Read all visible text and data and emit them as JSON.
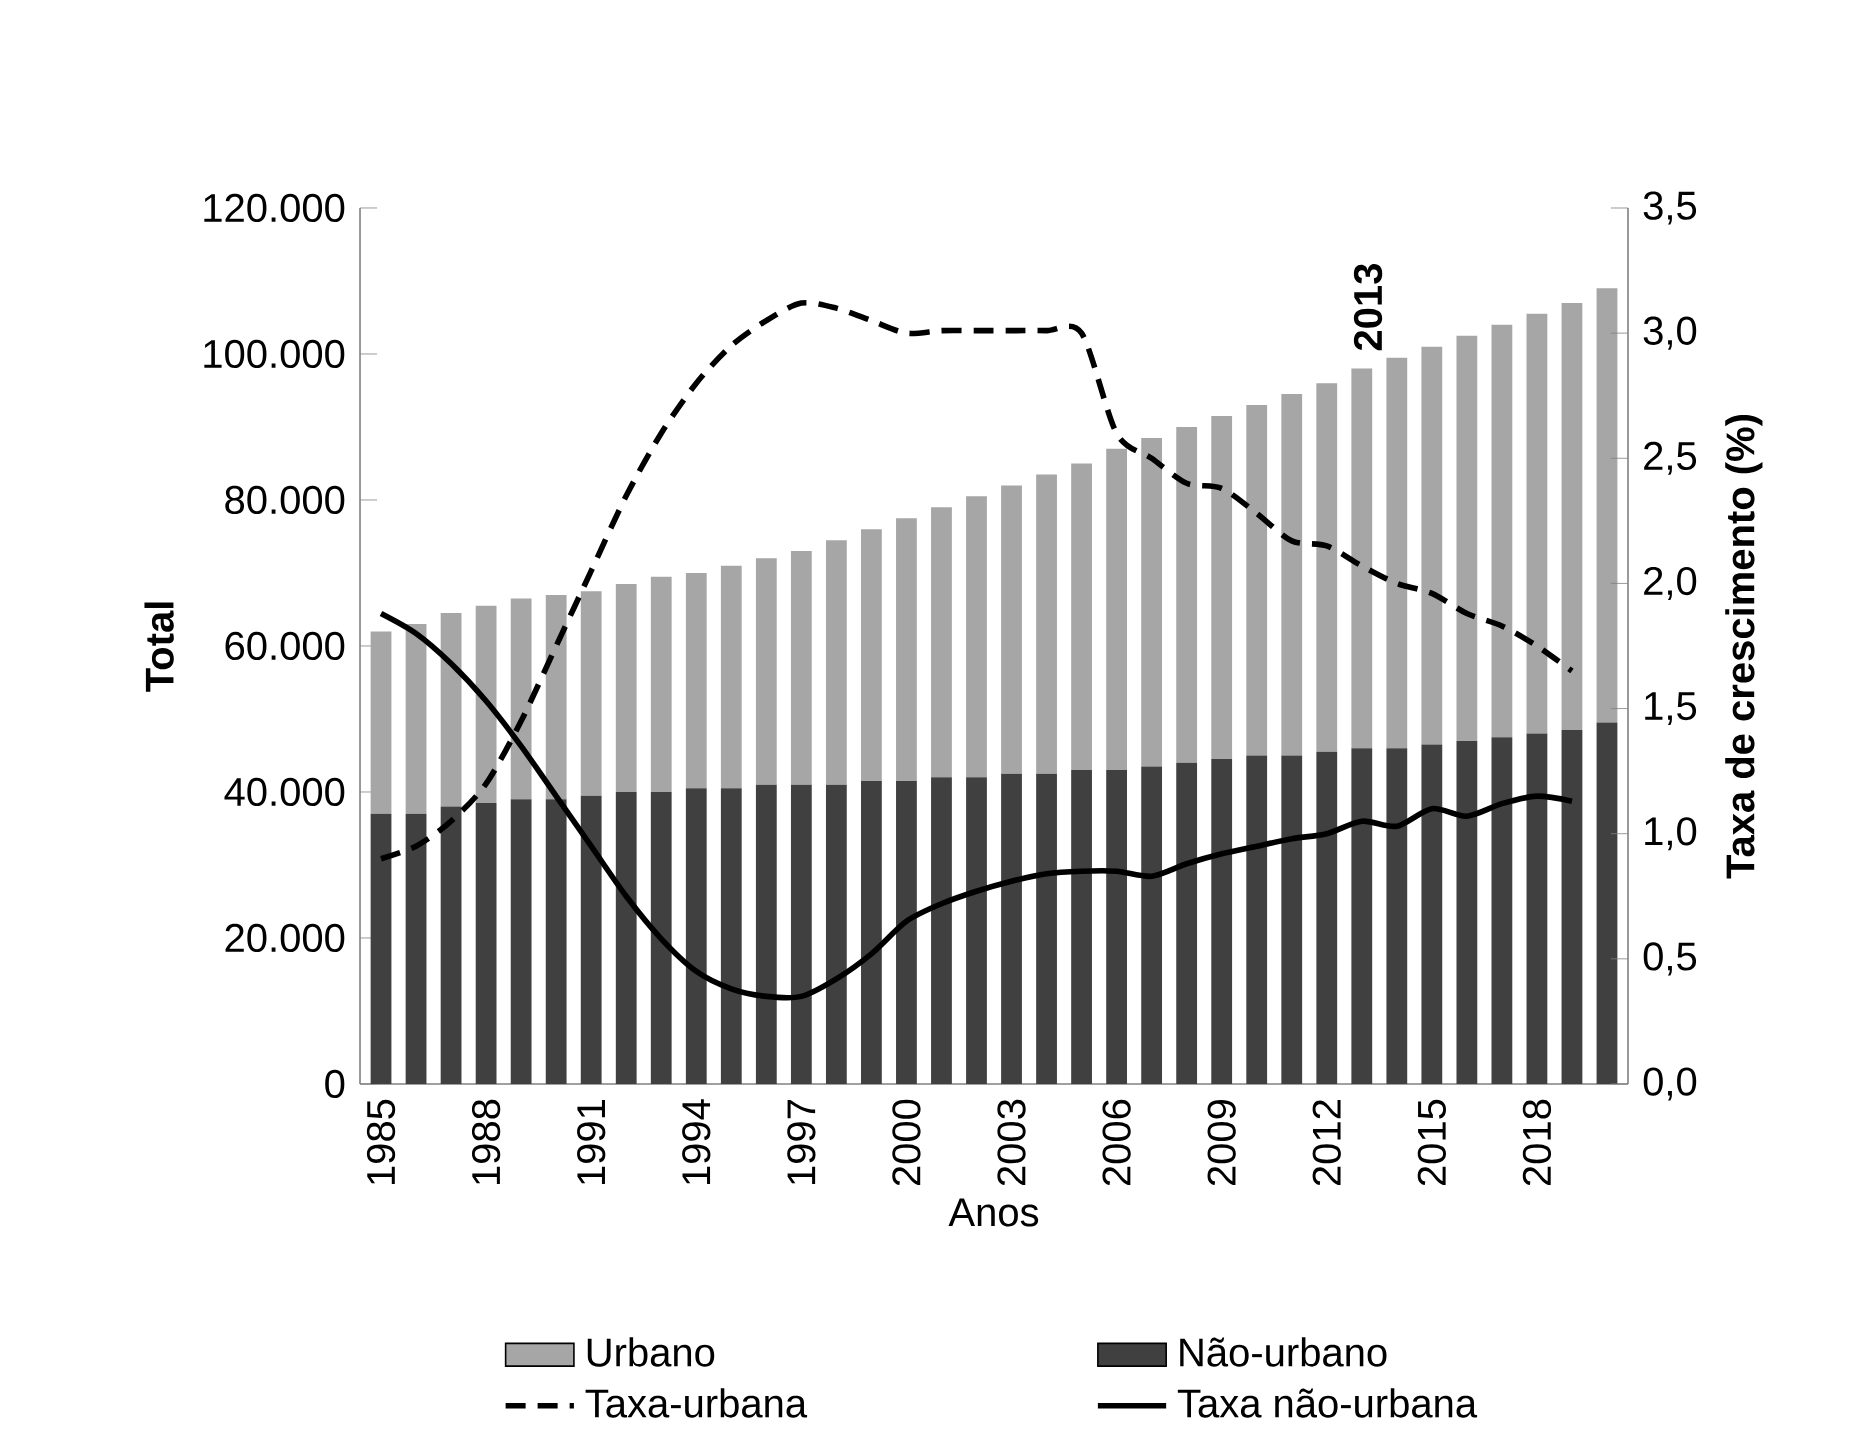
{
  "chart_data": {
    "type": "bar",
    "stacked": true,
    "xlabel": "Anos",
    "ylabel": "Total",
    "y2label": "Taxa de crescimento (%)",
    "categories": [
      "1985",
      null,
      null,
      "1988",
      null,
      null,
      "1991",
      null,
      null,
      "1994",
      null,
      null,
      "1997",
      null,
      null,
      "2000",
      null,
      null,
      "2003",
      null,
      null,
      "2006",
      null,
      null,
      "2009",
      null,
      null,
      "2012",
      null,
      null,
      "2015",
      null,
      null,
      "2018",
      null,
      null
    ],
    "series": [
      {
        "name": "Não-urbano",
        "color": "#404040",
        "values": [
          37000,
          37000,
          38000,
          38500,
          39000,
          39000,
          39500,
          40000,
          40000,
          40500,
          40500,
          41000,
          41000,
          41000,
          41500,
          41500,
          42000,
          42000,
          42500,
          42500,
          43000,
          43000,
          43500,
          44000,
          44500,
          45000,
          45000,
          45500,
          46000,
          46000,
          46500,
          47000,
          47500,
          48000,
          48500,
          49500
        ]
      },
      {
        "name": "Urbano",
        "color": "#a6a6a6",
        "values": [
          25000,
          26000,
          26500,
          27000,
          27500,
          28000,
          28000,
          28500,
          29500,
          29500,
          30500,
          31000,
          32000,
          33500,
          34500,
          36000,
          37000,
          38500,
          39500,
          41000,
          42000,
          44000,
          45000,
          46000,
          47000,
          48000,
          49500,
          50500,
          52000,
          53500,
          54500,
          55500,
          56500,
          57500,
          58500,
          59500
        ]
      },
      {
        "name": "Taxa-urbana",
        "type": "line",
        "axis": "y2",
        "color": "#000000",
        "line_style": "dashed",
        "values": [
          0.9,
          0.95,
          1.05,
          1.2,
          1.45,
          1.75,
          2.05,
          2.35,
          2.6,
          2.8,
          2.95,
          3.05,
          3.12,
          3.1,
          3.05,
          3.0,
          3.01,
          3.01,
          3.01,
          3.01,
          3.0,
          2.6,
          2.5,
          2.4,
          2.38,
          2.28,
          2.17,
          2.15,
          2.07,
          2.0,
          1.96,
          1.88,
          1.83,
          1.75,
          1.65,
          null
        ]
      },
      {
        "name": "Taxa não-urbana",
        "type": "line",
        "axis": "y2",
        "color": "#000000",
        "line_style": "solid",
        "values": [
          1.88,
          1.8,
          1.68,
          1.53,
          1.35,
          1.15,
          0.95,
          0.75,
          0.58,
          0.45,
          0.38,
          0.35,
          0.35,
          0.42,
          0.52,
          0.65,
          0.72,
          0.77,
          0.81,
          0.84,
          0.85,
          0.85,
          0.83,
          0.88,
          0.92,
          0.95,
          0.98,
          1.0,
          1.05,
          1.03,
          1.1,
          1.07,
          1.12,
          1.15,
          1.13,
          null
        ]
      }
    ],
    "ylim": [
      0,
      120000
    ],
    "yticks": [
      0,
      {
        "value": 20000,
        "label": "20.000"
      },
      {
        "value": 40000,
        "label": "40.000"
      },
      {
        "value": 60000,
        "label": "60.000"
      },
      {
        "value": 80000,
        "label": "80.000"
      },
      {
        "value": 100000,
        "label": "100.000"
      },
      {
        "value": 120000,
        "label": "120.000"
      }
    ],
    "y2lim": [
      0,
      3.5
    ],
    "y2ticks": [
      {
        "value": 0,
        "label": "0,0"
      },
      {
        "value": 0.5,
        "label": "0,5"
      },
      {
        "value": 1,
        "label": "1,0"
      },
      {
        "value": 1.5,
        "label": "1,5"
      },
      {
        "value": 2,
        "label": "2,0"
      },
      {
        "value": 2.5,
        "label": "2,5"
      },
      {
        "value": 3,
        "label": "3,0"
      },
      {
        "value": 3.5,
        "label": "3,5"
      }
    ],
    "annotations": [
      "2013"
    ],
    "legend": "bottom",
    "grid": false
  }
}
